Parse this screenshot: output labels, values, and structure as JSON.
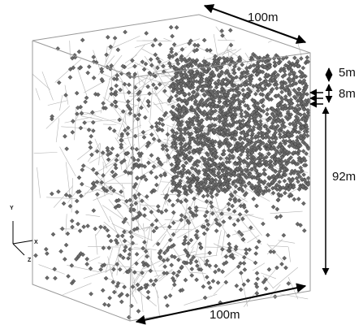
{
  "dimensions": {
    "top_width": "100m",
    "layer_top": "5m",
    "layer_middle": "8m",
    "layer_bottom": "92m",
    "bottom_width": "100m"
  },
  "axes": {
    "y": "Y",
    "x": "X",
    "z": "Z"
  }
}
